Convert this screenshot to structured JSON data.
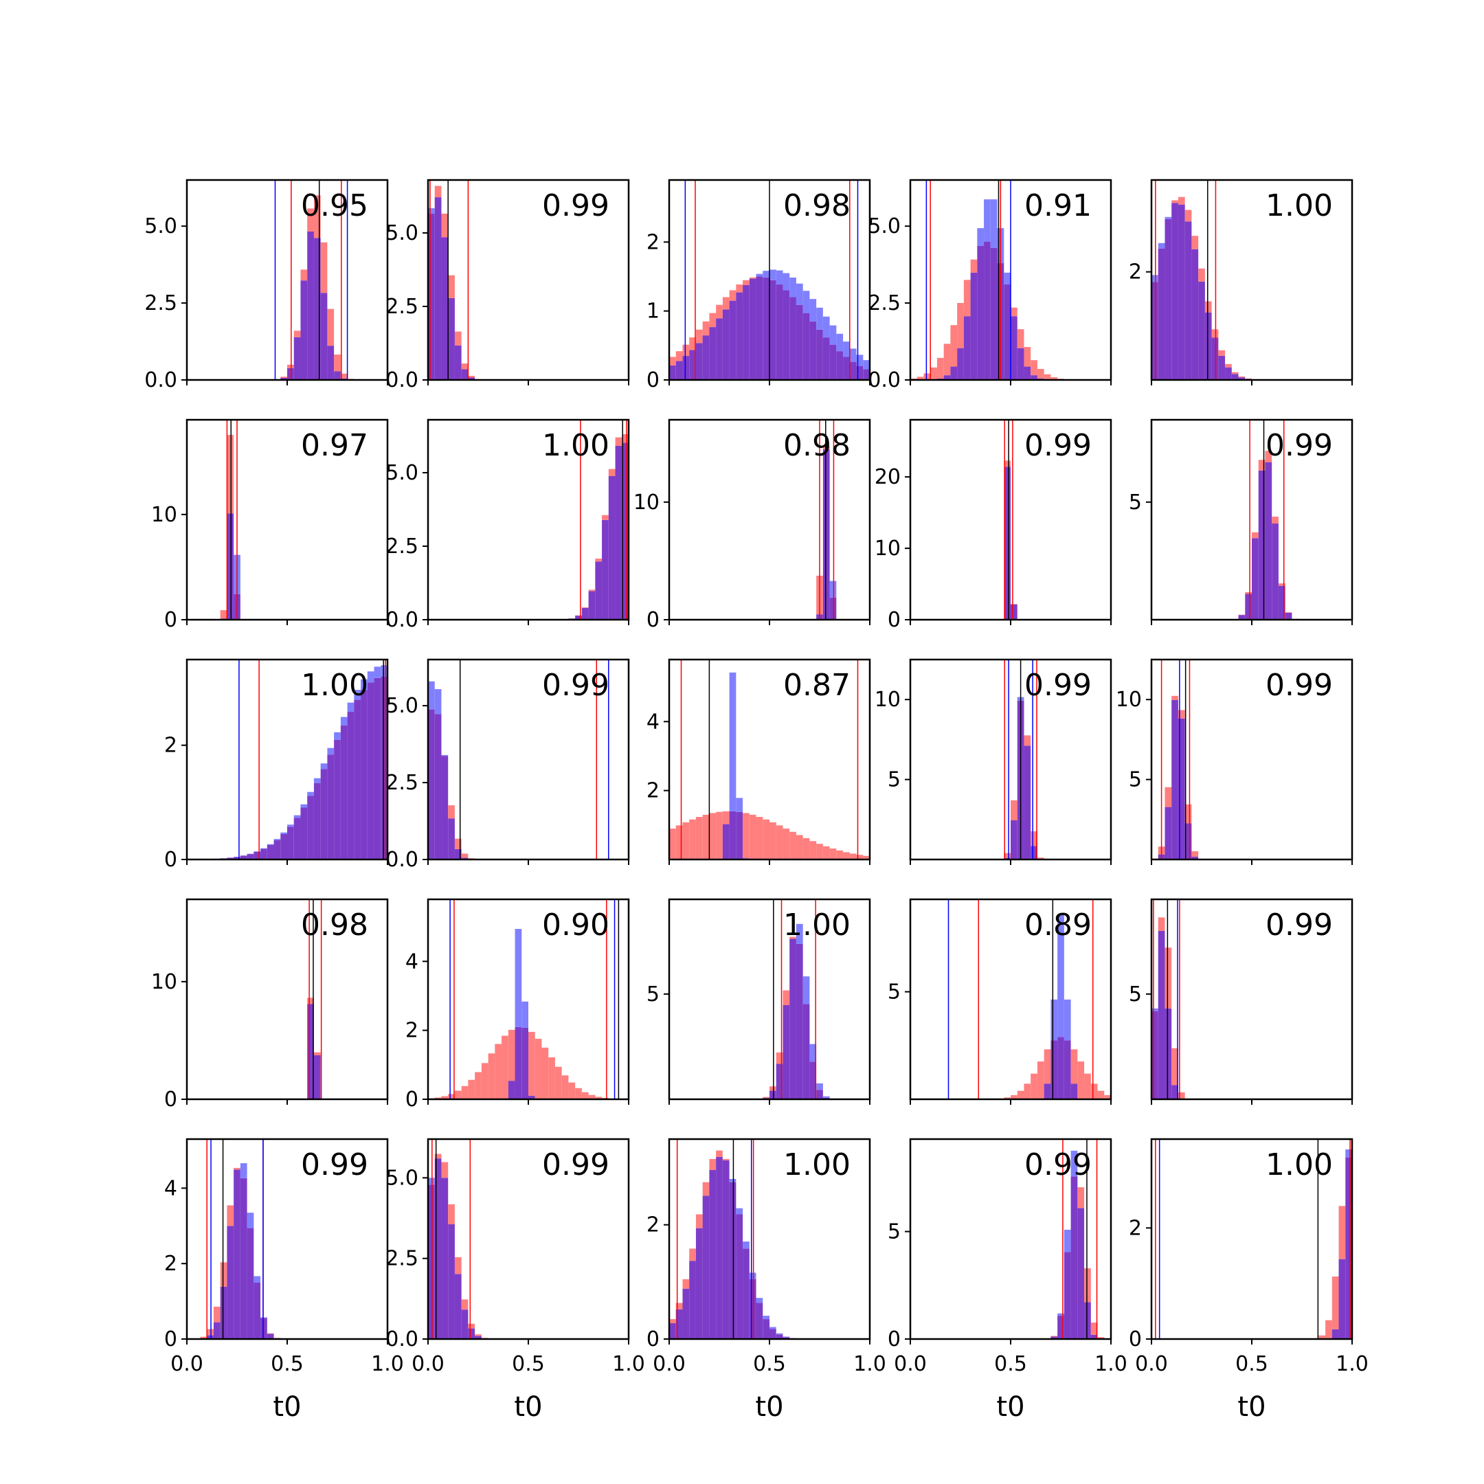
{
  "chart_data": {
    "type": "histogram-grid",
    "rows": 5,
    "cols": 5,
    "xlabel": "t0",
    "xlim": [
      0,
      1
    ],
    "xticks": [
      0.0,
      0.5,
      1.0
    ],
    "colors": {
      "red": "#ff0000",
      "blue": "#0000ff",
      "overlap": "#7d3cc8",
      "black": "#000000"
    },
    "panels": [
      {
        "score": "0.95",
        "ylim": [
          0,
          6.5
        ],
        "yticks": [
          0.0,
          2.5,
          5.0
        ],
        "ytick_labels": [
          "0.0",
          "2.5",
          "5.0"
        ],
        "red_peak": 0.64,
        "red_width": 0.055,
        "red_height": 6.1,
        "blue_peak": 0.63,
        "blue_width": 0.05,
        "blue_height": 5.0,
        "vlines": {
          "red": [
            0.52,
            0.77
          ],
          "blue": [
            0.44,
            0.8
          ],
          "black": [
            0.66
          ]
        }
      },
      {
        "score": "0.99",
        "ylim": [
          0,
          6.8
        ],
        "yticks": [
          0.0,
          2.5,
          5.0
        ],
        "ytick_labels": [
          "0.0",
          "2.5",
          "5.0"
        ],
        "red_peak": 0.05,
        "red_width": 0.06,
        "red_height": 6.6,
        "blue_peak": 0.04,
        "blue_width": 0.06,
        "blue_height": 6.3,
        "vlines": {
          "red": [
            0.01,
            0.2
          ],
          "blue": [],
          "black": [
            0.1
          ]
        }
      },
      {
        "score": "0.98",
        "ylim": [
          0,
          2.9
        ],
        "yticks": [
          0,
          1,
          2
        ],
        "ytick_labels": [
          "0",
          "1",
          "2"
        ],
        "red_peak": 0.45,
        "red_width": 0.25,
        "red_height": 1.5,
        "blue_peak": 0.52,
        "blue_width": 0.25,
        "blue_height": 1.6,
        "vlines": {
          "red": [
            0.13,
            0.9
          ],
          "blue": [
            0.08,
            0.94
          ],
          "black": [
            0.5
          ]
        }
      },
      {
        "score": "0.91",
        "ylim": [
          0,
          6.5
        ],
        "yticks": [
          0.0,
          2.5,
          5.0
        ],
        "ytick_labels": [
          "0.0",
          "2.5",
          "5.0"
        ],
        "red_peak": 0.38,
        "red_width": 0.12,
        "red_height": 4.5,
        "blue_peak": 0.4,
        "blue_width": 0.08,
        "blue_height": 6.0,
        "vlines": {
          "red": [
            0.1,
            0.45
          ],
          "blue": [
            0.08,
            0.5
          ],
          "black": [
            0.44
          ]
        }
      },
      {
        "score": "1.00",
        "ylim": [
          0,
          3.7
        ],
        "yticks": [
          2
        ],
        "ytick_labels": [
          "2"
        ],
        "red_peak": 0.14,
        "red_width": 0.11,
        "red_height": 3.4,
        "blue_peak": 0.13,
        "blue_width": 0.11,
        "blue_height": 3.3,
        "vlines": {
          "red": [
            0.02,
            0.32
          ],
          "blue": [],
          "black": [
            0.28
          ]
        }
      },
      {
        "score": "0.97",
        "ylim": [
          0,
          19
        ],
        "yticks": [
          0,
          10
        ],
        "ytick_labels": [
          "0",
          "10"
        ],
        "red_peak": 0.22,
        "red_width": 0.015,
        "red_height": 18.0,
        "blue_peak": 0.23,
        "blue_width": 0.015,
        "blue_height": 15.0,
        "vlines": {
          "red": [
            0.2,
            0.25
          ],
          "blue": [],
          "black": [
            0.22
          ]
        }
      },
      {
        "score": "1.00",
        "ylim": [
          0,
          6.8
        ],
        "yticks": [
          0.0,
          2.5,
          5.0
        ],
        "ytick_labels": [
          "0.0",
          "2.5",
          "5.0"
        ],
        "red_peak": 0.97,
        "red_width": 0.08,
        "red_height": 6.4,
        "blue_peak": 0.97,
        "blue_width": 0.08,
        "blue_height": 6.1,
        "vlines": {
          "red": [
            0.76,
            0.99
          ],
          "blue": [],
          "black": [
            0.97
          ]
        }
      },
      {
        "score": "0.98",
        "ylim": [
          0,
          17
        ],
        "yticks": [
          0,
          10
        ],
        "ytick_labels": [
          "0",
          "10"
        ],
        "red_peak": 0.78,
        "red_width": 0.018,
        "red_height": 15.0,
        "blue_peak": 0.79,
        "blue_width": 0.015,
        "blue_height": 16.0,
        "vlines": {
          "red": [
            0.75,
            0.82
          ],
          "blue": [],
          "black": [
            0.78
          ]
        }
      },
      {
        "score": "0.99",
        "ylim": [
          0,
          28
        ],
        "yticks": [
          0,
          10,
          20
        ],
        "ytick_labels": [
          "0",
          "10",
          "20"
        ],
        "red_peak": 0.49,
        "red_width": 0.012,
        "red_height": 26.0,
        "blue_peak": 0.49,
        "blue_width": 0.012,
        "blue_height": 25.0,
        "vlines": {
          "red": [
            0.47,
            0.51
          ],
          "blue": [],
          "black": [
            0.49
          ]
        }
      },
      {
        "score": "0.99",
        "ylim": [
          0,
          8.5
        ],
        "yticks": [
          5
        ],
        "ytick_labels": [
          "5"
        ],
        "red_peak": 0.57,
        "red_width": 0.045,
        "red_height": 7.5,
        "blue_peak": 0.57,
        "blue_width": 0.045,
        "blue_height": 7.0,
        "vlines": {
          "red": [
            0.49,
            0.66
          ],
          "blue": [],
          "black": [
            0.56
          ]
        }
      },
      {
        "score": "1.00",
        "ylim": [
          0,
          3.5
        ],
        "yticks": [
          0,
          2
        ],
        "ytick_labels": [
          "0",
          "2"
        ],
        "red_peak": 0.98,
        "red_width": 0.25,
        "red_height": 3.2,
        "blue_peak": 0.98,
        "blue_width": 0.25,
        "blue_height": 3.4,
        "vlines": {
          "red": [
            0.36,
            0.99
          ],
          "blue": [
            0.26
          ],
          "black": [
            0.98
          ]
        }
      },
      {
        "score": "0.99",
        "ylim": [
          0,
          6.5
        ],
        "yticks": [
          0.0,
          2.5,
          5.0
        ],
        "ytick_labels": [
          "0.0",
          "2.5",
          "5.0"
        ],
        "red_peak": 0.03,
        "red_width": 0.06,
        "red_height": 5.0,
        "blue_peak": 0.03,
        "blue_width": 0.05,
        "blue_height": 6.0,
        "vlines": {
          "red": [
            0.84
          ],
          "blue": [
            0.9
          ],
          "black": [
            0.16
          ]
        }
      },
      {
        "score": "0.87",
        "ylim": [
          0,
          5.8
        ],
        "yticks": [
          2,
          4
        ],
        "ytick_labels": [
          "2",
          "4"
        ],
        "red_peak": 0.3,
        "red_width": 0.3,
        "red_height": 1.4,
        "blue_peak": 0.32,
        "blue_width": 0.02,
        "blue_height": 5.5,
        "vlines": {
          "red": [
            0.06,
            0.94
          ],
          "blue": [],
          "black": [
            0.2
          ]
        }
      },
      {
        "score": "0.99",
        "ylim": [
          0,
          12.5
        ],
        "yticks": [
          5,
          10
        ],
        "ytick_labels": [
          "5",
          "10"
        ],
        "red_peak": 0.56,
        "red_width": 0.03,
        "red_height": 10.5,
        "blue_peak": 0.56,
        "blue_width": 0.025,
        "blue_height": 11.0,
        "vlines": {
          "red": [
            0.47,
            0.63
          ],
          "blue": [
            0.49,
            0.61
          ],
          "black": [
            0.55
          ]
        }
      },
      {
        "score": "0.99",
        "ylim": [
          0,
          12.5
        ],
        "yticks": [
          5,
          10
        ],
        "ytick_labels": [
          "5",
          "10"
        ],
        "red_peak": 0.13,
        "red_width": 0.035,
        "red_height": 11.0,
        "blue_peak": 0.13,
        "blue_width": 0.03,
        "blue_height": 11.0,
        "vlines": {
          "red": [
            0.05,
            0.19
          ],
          "blue": [
            0.14
          ],
          "black": [
            0.17
          ]
        }
      },
      {
        "score": "0.98",
        "ylim": [
          0,
          17
        ],
        "yticks": [
          0,
          10
        ],
        "ytick_labels": [
          "0",
          "10"
        ],
        "red_peak": 0.63,
        "red_width": 0.012,
        "red_height": 16.0,
        "blue_peak": 0.63,
        "blue_width": 0.012,
        "blue_height": 15.0,
        "vlines": {
          "red": [
            0.61,
            0.67
          ],
          "blue": [],
          "black": [
            0.63
          ]
        }
      },
      {
        "score": "0.90",
        "ylim": [
          0,
          5.8
        ],
        "yticks": [
          0,
          2,
          4
        ],
        "ytick_labels": [
          "0",
          "2",
          "4"
        ],
        "red_peak": 0.46,
        "red_width": 0.15,
        "red_height": 2.1,
        "blue_peak": 0.46,
        "blue_width": 0.02,
        "blue_height": 5.6,
        "vlines": {
          "red": [
            0.13,
            0.89
          ],
          "blue": [
            0.11,
            0.93
          ],
          "black": [
            0.95
          ]
        }
      },
      {
        "score": "1.00",
        "ylim": [
          0,
          9.5
        ],
        "yticks": [
          5
        ],
        "ytick_labels": [
          "5"
        ],
        "red_peak": 0.63,
        "red_width": 0.05,
        "red_height": 8.0,
        "blue_peak": 0.64,
        "blue_width": 0.05,
        "blue_height": 8.5,
        "vlines": {
          "red": [
            0.56,
            0.73
          ],
          "blue": [],
          "black": [
            0.52
          ]
        }
      },
      {
        "score": "0.89",
        "ylim": [
          0,
          9.3
        ],
        "yticks": [
          5
        ],
        "ytick_labels": [
          "5"
        ],
        "red_peak": 0.75,
        "red_width": 0.1,
        "red_height": 2.9,
        "blue_peak": 0.75,
        "blue_width": 0.03,
        "blue_height": 8.6,
        "vlines": {
          "red": [
            0.34,
            0.91
          ],
          "blue": [
            0.19
          ],
          "black": [
            0.71
          ]
        }
      },
      {
        "score": "0.99",
        "ylim": [
          0,
          9.5
        ],
        "yticks": [
          5
        ],
        "ytick_labels": [
          "5"
        ],
        "red_peak": 0.06,
        "red_width": 0.035,
        "red_height": 9.0,
        "blue_peak": 0.05,
        "blue_width": 0.03,
        "blue_height": 8.0,
        "vlines": {
          "red": [
            0.01,
            0.14
          ],
          "blue": [
            0.13
          ],
          "black": [
            0.08
          ]
        }
      },
      {
        "score": "0.99",
        "ylim": [
          0,
          5.3
        ],
        "yticks": [
          0,
          2,
          4
        ],
        "ytick_labels": [
          "0",
          "2",
          "4"
        ],
        "red_peak": 0.26,
        "red_width": 0.06,
        "red_height": 4.6,
        "blue_peak": 0.27,
        "blue_width": 0.055,
        "blue_height": 4.8,
        "vlines": {
          "red": [
            0.1,
            0.38
          ],
          "blue": [
            0.12,
            0.38
          ],
          "black": [
            0.18
          ]
        }
      },
      {
        "score": "0.99",
        "ylim": [
          0,
          6.2
        ],
        "yticks": [
          0.0,
          2.5,
          5.0
        ],
        "ytick_labels": [
          "0.0",
          "2.5",
          "5.0"
        ],
        "red_peak": 0.06,
        "red_width": 0.07,
        "red_height": 5.8,
        "blue_peak": 0.05,
        "blue_width": 0.07,
        "blue_height": 5.6,
        "vlines": {
          "red": [
            0.02,
            0.21
          ],
          "blue": [],
          "black": [
            0.04
          ]
        }
      },
      {
        "score": "1.00",
        "ylim": [
          0,
          3.5
        ],
        "yticks": [
          0,
          2
        ],
        "ytick_labels": [
          "0",
          "2"
        ],
        "red_peak": 0.25,
        "red_width": 0.11,
        "red_height": 3.3,
        "blue_peak": 0.26,
        "blue_width": 0.11,
        "blue_height": 3.2,
        "vlines": {
          "red": [
            0.04,
            0.42
          ],
          "blue": [
            0.41
          ],
          "black": [
            0.32
          ]
        }
      },
      {
        "score": "0.99",
        "ylim": [
          0,
          9.3
        ],
        "yticks": [
          0,
          5
        ],
        "ytick_labels": [
          "0",
          "5"
        ],
        "red_peak": 0.83,
        "red_width": 0.04,
        "red_height": 8.0,
        "blue_peak": 0.82,
        "blue_width": 0.035,
        "blue_height": 8.8,
        "vlines": {
          "red": [
            0.76,
            0.93
          ],
          "blue": [],
          "black": [
            0.88
          ]
        }
      },
      {
        "score": "1.00",
        "ylim": [
          0,
          3.6
        ],
        "yticks": [
          0,
          2
        ],
        "ytick_labels": [
          "0",
          "2"
        ],
        "red_peak": 0.99,
        "red_width": 0.05,
        "red_height": 3.3,
        "blue_peak": 0.99,
        "blue_width": 0.03,
        "blue_height": 3.5,
        "vlines": {
          "red": [
            0.02,
            0.99
          ],
          "blue": [
            0.04
          ],
          "black": [
            0.83
          ]
        }
      }
    ]
  }
}
